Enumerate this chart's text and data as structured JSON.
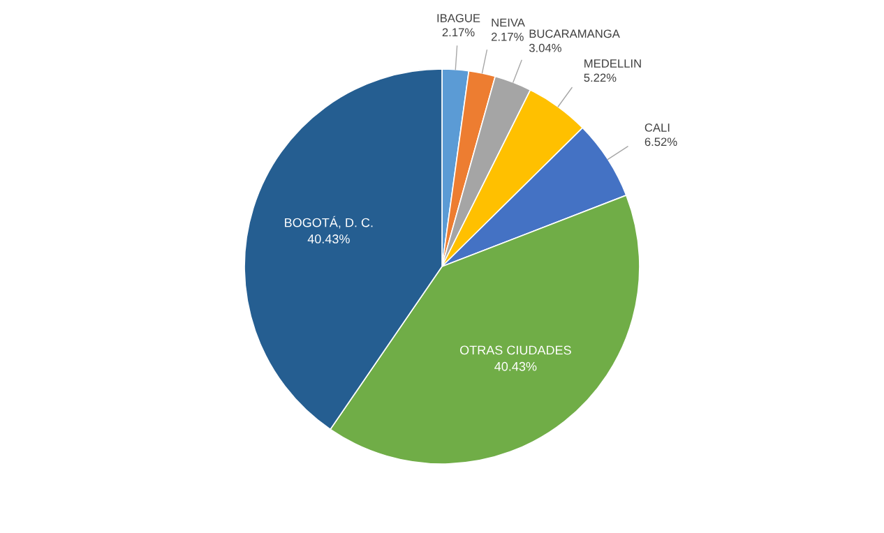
{
  "chart_data": {
    "type": "pie",
    "categories": [
      "IBAGUE",
      "NEIVA",
      "BUCARAMANGA",
      "MEDELLIN",
      "CALI",
      "OTRAS CIUDADES",
      "BOGOTÁ, D. C."
    ],
    "values": [
      2.17,
      2.17,
      3.04,
      5.22,
      6.52,
      40.43,
      40.43
    ],
    "colors": [
      "#5b9bd5",
      "#ed7d31",
      "#a5a5a5",
      "#ffc000",
      "#4472c4",
      "#70ad47",
      "#255e91"
    ],
    "value_labels": [
      "2.17%",
      "2.17%",
      "3.04%",
      "5.22%",
      "6.52%",
      "40.43%",
      "40.43%"
    ]
  }
}
